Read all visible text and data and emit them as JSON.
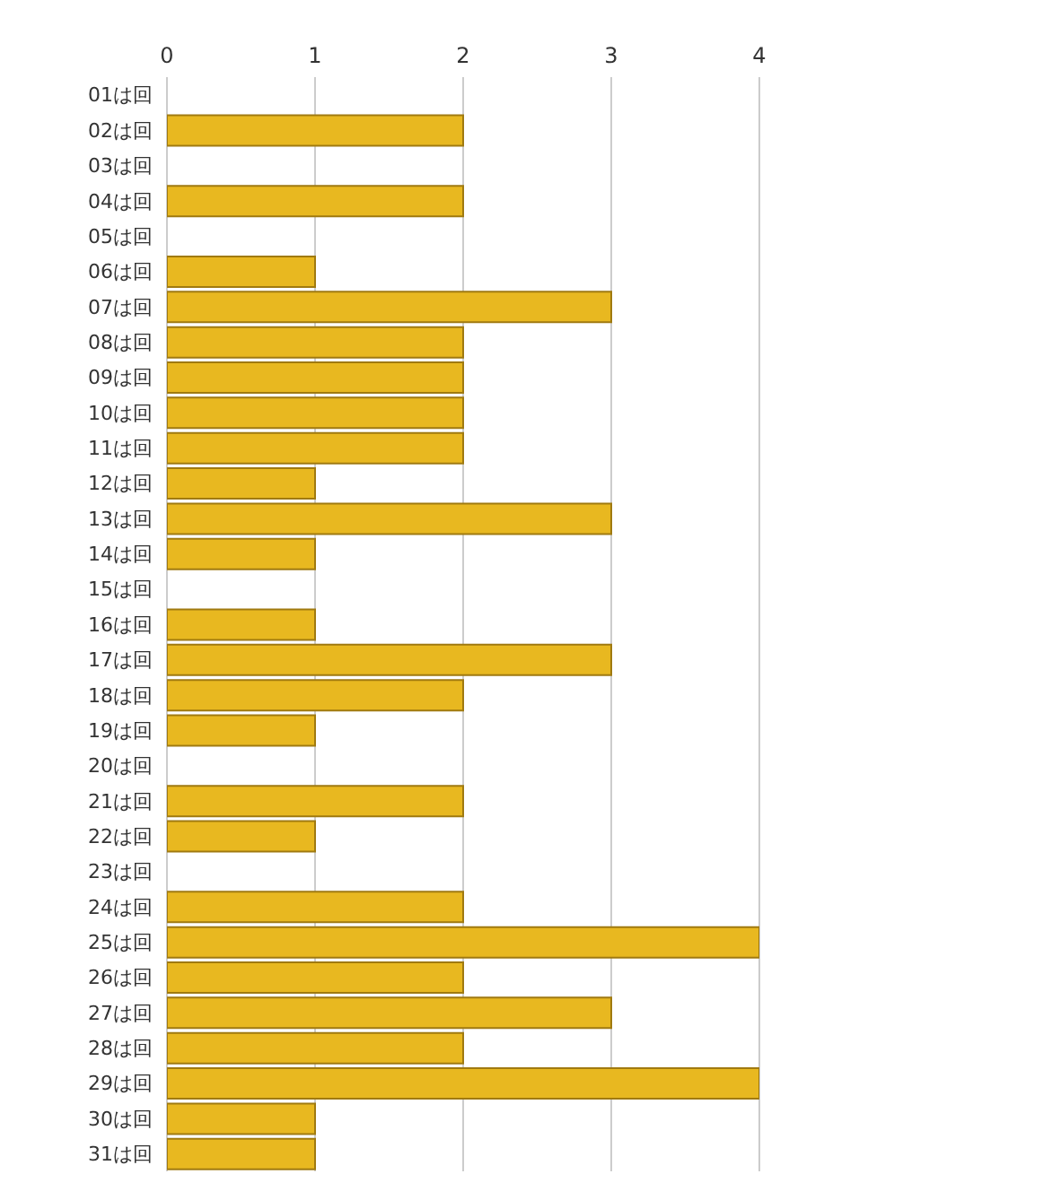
{
  "chart_data": {
    "type": "bar",
    "orientation": "horizontal",
    "categories": [
      "01は回",
      "02は回",
      "03は回",
      "04は回",
      "05は回",
      "06は回",
      "07は回",
      "08は回",
      "09は回",
      "10は回",
      "11は回",
      "12は回",
      "13は回",
      "14は回",
      "15は回",
      "16は回",
      "17は回",
      "18は回",
      "19は回",
      "20は回",
      "21は回",
      "22は回",
      "23は回",
      "24は回",
      "25は回",
      "26は回",
      "27は回",
      "28は回",
      "29は回",
      "30は回",
      "31は回"
    ],
    "values": [
      0,
      2,
      0,
      2,
      0,
      1,
      3,
      2,
      2,
      2,
      2,
      1,
      3,
      1,
      0,
      1,
      3,
      2,
      1,
      0,
      2,
      1,
      0,
      2,
      4,
      2,
      3,
      2,
      4,
      1,
      1
    ],
    "color": "#e8b820",
    "xlim": [
      0,
      4
    ],
    "xticks": [
      0,
      1,
      2,
      3,
      4
    ],
    "grid": "x"
  }
}
